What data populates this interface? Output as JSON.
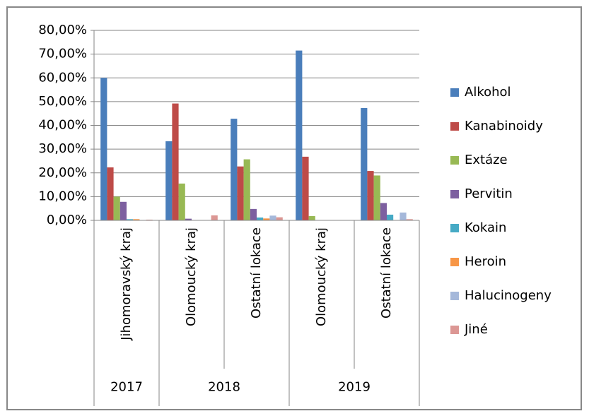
{
  "chart_data": {
    "type": "bar",
    "categories": [
      "Jihomoravský kraj",
      "Olomoucký kraj",
      "Ostatní lokace",
      "Olomoucký kraj",
      "Ostatní lokace"
    ],
    "groups": [
      {
        "label": "2017",
        "span": 1
      },
      {
        "label": "2018",
        "span": 2
      },
      {
        "label": "2019",
        "span": 2
      }
    ],
    "series": [
      {
        "name": "Alkohol",
        "color": "#4a7ebb",
        "values": [
          60,
          33.3,
          42.8,
          71.5,
          47.3
        ]
      },
      {
        "name": "Kanabinoidy",
        "color": "#be4b48",
        "values": [
          22.3,
          49.2,
          22.7,
          26.8,
          20.8
        ]
      },
      {
        "name": "Extáze",
        "color": "#98b954",
        "values": [
          10,
          15.5,
          25.7,
          1.8,
          18.9
        ]
      },
      {
        "name": "Pervitin",
        "color": "#7d60a0",
        "values": [
          7.8,
          0.7,
          4.8,
          0,
          7.3
        ]
      },
      {
        "name": "Kokain",
        "color": "#46aac5",
        "values": [
          0.5,
          0,
          1.2,
          0,
          2.4
        ]
      },
      {
        "name": "Heroin",
        "color": "#f79646",
        "values": [
          0.5,
          0,
          0.8,
          0,
          0
        ]
      },
      {
        "name": "Halucinogeny",
        "color": "#a5b8da",
        "values": [
          0,
          0,
          2,
          0,
          3.3
        ]
      },
      {
        "name": "Jiné",
        "color": "#dc9794",
        "values": [
          0.3,
          2.1,
          1.3,
          0,
          0.5
        ]
      }
    ],
    "ylim": [
      0,
      80
    ],
    "yticks": [
      {
        "value": 0,
        "label": "0,00%"
      },
      {
        "value": 10,
        "label": "10,00%"
      },
      {
        "value": 20,
        "label": "20,00%"
      },
      {
        "value": 30,
        "label": "30,00%"
      },
      {
        "value": 40,
        "label": "40,00%"
      },
      {
        "value": 50,
        "label": "50,00%"
      },
      {
        "value": 60,
        "label": "60,00%"
      },
      {
        "value": 70,
        "label": "70,00%"
      },
      {
        "value": 80,
        "label": "80,00%"
      }
    ],
    "grid": true,
    "legend": "right"
  }
}
